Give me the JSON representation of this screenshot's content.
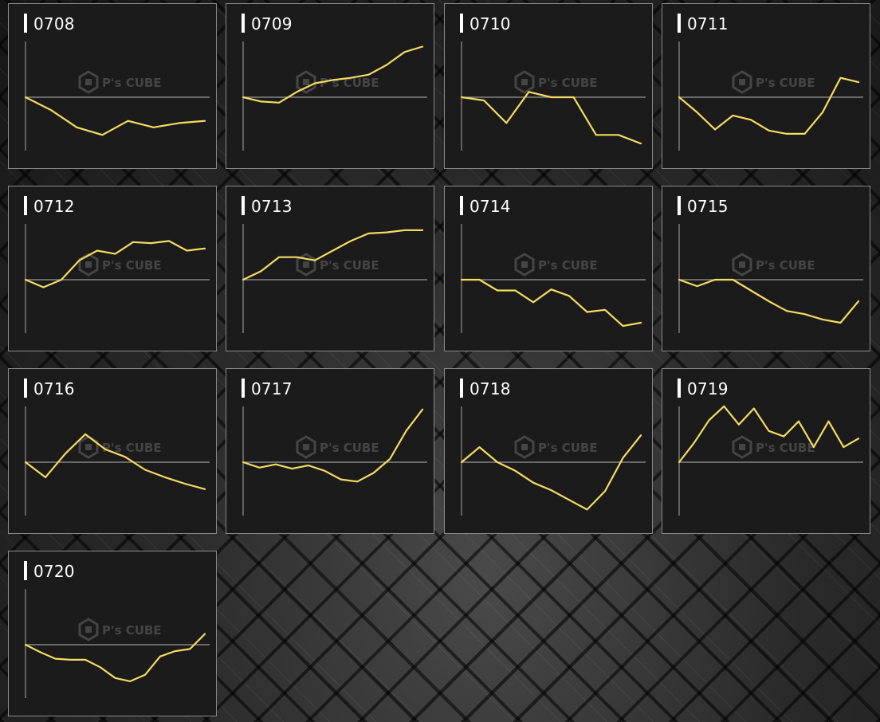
{
  "colors": {
    "line": "#f3dc60",
    "baseline": "#9a9a9a",
    "axis": "#a8a8a8",
    "panel_bg": "#1b1b1b",
    "panel_border": "#8a8a8a",
    "watermark": "#4a4a4a"
  },
  "watermark": {
    "brand": "P's CUBE"
  },
  "chart_data": [
    {
      "type": "line",
      "title": "0708",
      "y": [
        0,
        -12,
        -28,
        -35,
        -22,
        -28,
        -24,
        -22
      ]
    },
    {
      "type": "line",
      "title": "0709",
      "y": [
        0,
        -4,
        -5,
        5,
        13,
        16,
        18,
        21,
        30,
        42,
        47
      ]
    },
    {
      "type": "line",
      "title": "0710",
      "y": [
        0,
        -3,
        -24,
        5,
        0,
        0,
        -35,
        -35,
        -43
      ]
    },
    {
      "type": "line",
      "title": "0711",
      "y": [
        0,
        -14,
        -30,
        -17,
        -21,
        -31,
        -34,
        -34,
        -14,
        18,
        14
      ]
    },
    {
      "type": "line",
      "title": "0712",
      "y": [
        0,
        -7,
        0,
        18,
        27,
        24,
        35,
        34,
        36,
        27,
        29
      ]
    },
    {
      "type": "line",
      "title": "0713",
      "y": [
        0,
        8,
        21,
        21,
        18,
        27,
        36,
        43,
        44,
        46,
        46
      ]
    },
    {
      "type": "line",
      "title": "0714",
      "y": [
        0,
        0,
        -10,
        -10,
        -21,
        -9,
        -15,
        -30,
        -28,
        -43,
        -40
      ]
    },
    {
      "type": "line",
      "title": "0715",
      "y": [
        0,
        -6,
        0,
        0,
        -10,
        -20,
        -29,
        -32,
        -37,
        -40,
        -20
      ]
    },
    {
      "type": "line",
      "title": "0716",
      "y": [
        0,
        -14,
        8,
        26,
        12,
        5,
        -7,
        -14,
        -20,
        -25
      ]
    },
    {
      "type": "line",
      "title": "0717",
      "y": [
        0,
        -5,
        -2,
        -6,
        -3,
        -8,
        -16,
        -18,
        -10,
        3,
        29,
        49
      ]
    },
    {
      "type": "line",
      "title": "0718",
      "y": [
        0,
        14,
        0,
        -8,
        -19,
        -26,
        -35,
        -44,
        -27,
        4,
        25
      ]
    },
    {
      "type": "line",
      "title": "0719",
      "y": [
        0,
        18,
        39,
        52,
        35,
        50,
        29,
        24,
        38,
        14,
        38,
        14,
        22
      ]
    },
    {
      "type": "line",
      "title": "0720",
      "y": [
        0,
        -7,
        -13,
        -14,
        -14,
        -21,
        -31,
        -34,
        -28,
        -11,
        -6,
        -4,
        10
      ]
    }
  ]
}
